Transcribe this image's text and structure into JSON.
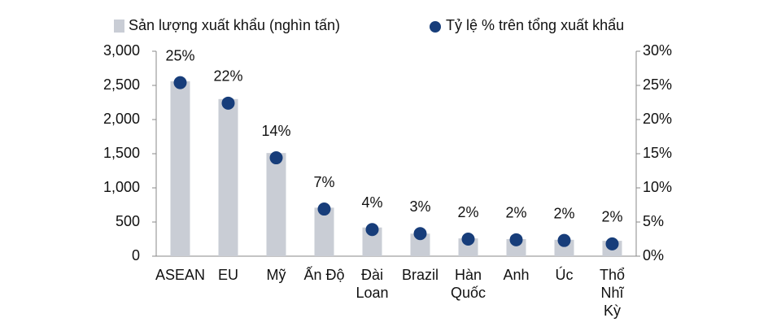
{
  "chart_data": {
    "type": "bar-dot",
    "categories": [
      "ASEAN",
      "EU",
      "Mỹ",
      "Ấn Độ",
      "Đài\nLoan",
      "Brazil",
      "Hàn\nQuốc",
      "Anh",
      "Úc",
      "Thổ\nNhĩ\nKỳ"
    ],
    "series": [
      {
        "name": "Sản lượng xuất khẩu (nghìn tấn)",
        "color": "#c9cdd5",
        "values": [
          2560,
          2300,
          1510,
          710,
          420,
          330,
          260,
          250,
          240,
          225
        ]
      },
      {
        "name": "Tỷ lệ % trên tổng xuất khẩu",
        "color": "#173d7a",
        "axis": "y2",
        "values": [
          25.4,
          22.4,
          14.4,
          6.9,
          3.9,
          3.3,
          2.5,
          2.4,
          2.3,
          1.8
        ],
        "value_labels": [
          "25%",
          "22%",
          "14%",
          "7%",
          "4%",
          "3%",
          "2%",
          "2%",
          "2%",
          "2%"
        ]
      }
    ],
    "ylim": [
      0,
      3000
    ],
    "yticks": [
      0,
      500,
      {
        "value": 1000,
        "label": "1,000"
      },
      {
        "value": 1500,
        "label": "1,500"
      },
      {
        "value": 2000,
        "label": "2,000"
      },
      {
        "value": 2500,
        "label": "2,500"
      },
      {
        "value": 3000,
        "label": "3,000"
      }
    ],
    "y2lim": [
      0,
      30
    ],
    "y2ticks": [
      {
        "value": 0,
        "label": "0%"
      },
      {
        "value": 5,
        "label": "5%"
      },
      {
        "value": 10,
        "label": "10%"
      },
      {
        "value": 15,
        "label": "15%"
      },
      {
        "value": 20,
        "label": "20%"
      },
      {
        "value": 25,
        "label": "25%"
      },
      {
        "value": 30,
        "label": "30%"
      }
    ],
    "grid": false
  }
}
